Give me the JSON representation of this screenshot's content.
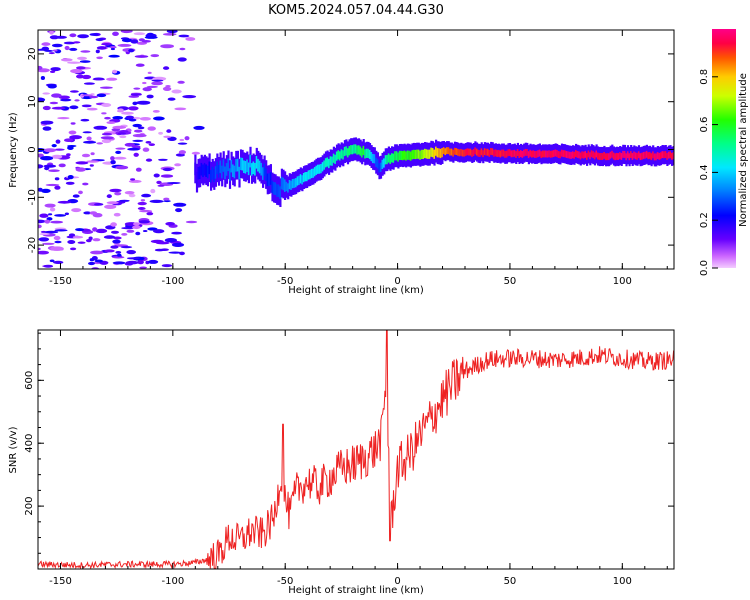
{
  "figure": {
    "title": "KOM5.2024.057.04.44.G30"
  },
  "chart_data": [
    {
      "type": "heatmap",
      "name": "spectrogram",
      "xlabel": "Height of straight line (km)",
      "ylabel": "Frequency (Hz)",
      "xlim": [
        -160,
        123
      ],
      "ylim": [
        -25,
        25
      ],
      "xticks": [
        -150,
        -100,
        -50,
        0,
        50,
        100
      ],
      "yticks": [
        -20,
        -10,
        0,
        10,
        20
      ],
      "colorbar": {
        "label": "Normalized spectral amplitude",
        "range": [
          0,
          1
        ],
        "ticks": [
          "0.0",
          "0.2",
          "0.4",
          "0.6",
          "0.8"
        ],
        "colormap": "rainbow (purple-blue-cyan-green-yellow-red-magenta)"
      },
      "ridge": {
        "x": [
          -90,
          -80,
          -70,
          -62,
          -58,
          -55,
          -50,
          -45,
          -40,
          -35,
          -30,
          -25,
          -20,
          -15,
          -10,
          -8,
          -5,
          0,
          10,
          20,
          30,
          50,
          70,
          90,
          110,
          123
        ],
        "y": [
          -5,
          -4.5,
          -4,
          -3,
          -6,
          -8,
          -8,
          -7,
          -5.5,
          -4,
          -2.5,
          -1,
          0,
          -0.5,
          -2,
          -4,
          -2,
          -1.5,
          -1,
          -0.5,
          -0.5,
          -0.8,
          -1,
          -1.2,
          -1.3,
          -1.3
        ],
        "amplitude": [
          0.2,
          0.3,
          0.4,
          0.45,
          0.25,
          0.3,
          0.35,
          0.4,
          0.45,
          0.45,
          0.5,
          0.55,
          0.55,
          0.6,
          0.35,
          0.3,
          0.55,
          0.6,
          0.7,
          0.85,
          0.95,
          0.97,
          0.98,
          0.98,
          0.98,
          0.98
        ]
      },
      "noise_region": {
        "x_range": [
          -160,
          -85
        ],
        "amplitude_range": [
          0.0,
          0.2
        ]
      },
      "grid": false
    },
    {
      "type": "line",
      "name": "snr",
      "xlabel": "Height of straight line (km)",
      "ylabel": "SNR (v/v)",
      "xlim": [
        -160,
        123
      ],
      "ylim": [
        0,
        760
      ],
      "xticks": [
        -150,
        -100,
        -50,
        0,
        50,
        100
      ],
      "yticks": [
        200,
        400,
        600
      ],
      "color": "#ee2222",
      "grid": false,
      "series": [
        {
          "x": [
            -160,
            -140,
            -120,
            -100,
            -90,
            -80,
            -75,
            -70,
            -65,
            -60,
            -55,
            -52,
            -50,
            -48,
            -45,
            -40,
            -35,
            -30,
            -25,
            -20,
            -15,
            -10,
            -7,
            -5,
            -4,
            -3,
            0,
            5,
            10,
            15,
            20,
            25,
            30,
            40,
            50,
            60,
            70,
            80,
            90,
            100,
            110,
            123
          ],
          "y": [
            15,
            12,
            15,
            15,
            20,
            40,
            100,
            90,
            120,
            110,
            160,
            300,
            220,
            170,
            250,
            280,
            260,
            290,
            320,
            330,
            350,
            380,
            420,
            600,
            380,
            140,
            320,
            360,
            420,
            480,
            540,
            590,
            630,
            665,
            670,
            670,
            665,
            670,
            680,
            670,
            660,
            665
          ]
        }
      ]
    }
  ]
}
